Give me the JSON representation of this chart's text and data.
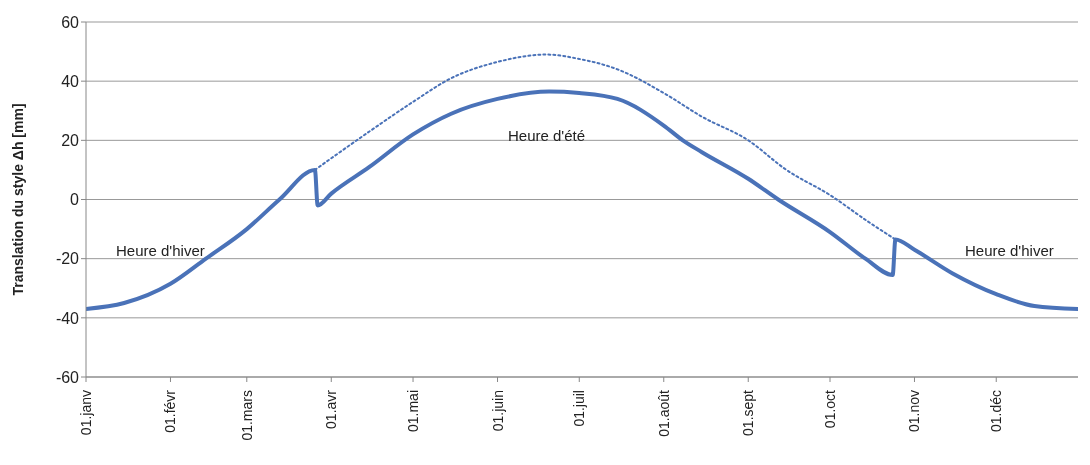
{
  "chart_data": {
    "type": "line",
    "ylabel": "Translation du style Δh [mm]",
    "xlim": [
      "--01-01",
      "--12-31"
    ],
    "xticks": [
      {
        "value": "--01-01",
        "label": "01.janv"
      },
      {
        "value": "--02-01",
        "label": "01.févr"
      },
      {
        "value": "--03-01",
        "label": "01.mars"
      },
      {
        "value": "--04-01",
        "label": "01.avr"
      },
      {
        "value": "--05-01",
        "label": "01.mai"
      },
      {
        "value": "--06-01",
        "label": "01.juin"
      },
      {
        "value": "--07-01",
        "label": "01.juil"
      },
      {
        "value": "--08-01",
        "label": "01.août"
      },
      {
        "value": "--09-01",
        "label": "01.sept"
      },
      {
        "value": "--10-01",
        "label": "01.oct"
      },
      {
        "value": "--11-01",
        "label": "01.nov"
      },
      {
        "value": "--12-01",
        "label": "01.déc"
      }
    ],
    "ylim": [
      -60,
      60
    ],
    "yticks": [
      -60,
      -40,
      -20,
      0,
      20,
      40,
      60
    ],
    "grid": "y",
    "marker": "none",
    "series": [
      {
        "color": "#4a72b8",
        "line_style": "solid",
        "x": [
          "--01-01",
          "--01-15",
          "--02-01",
          "--02-14",
          "--03-01",
          "--03-13",
          "--03-26",
          "--03-27",
          "--04-01",
          "--04-15",
          "--05-01",
          "--05-15",
          "--06-01",
          "--06-20",
          "--07-01",
          "--07-15",
          "--08-01",
          "--08-08",
          "--08-15",
          "--09-01",
          "--09-12",
          "--10-01",
          "--10-14",
          "--10-24",
          "--10-25",
          "--11-01",
          "--11-15",
          "--12-01",
          "--12-15",
          "--12-31"
        ],
        "values": [
          -37,
          -35,
          -28.5,
          -20,
          -10,
          0,
          10,
          -2,
          2,
          11,
          22,
          29,
          34,
          36.5,
          36,
          34,
          25,
          20,
          16,
          7,
          0,
          -11,
          -20,
          -25.5,
          -13.5,
          -17,
          -25,
          -32,
          -36,
          -37
        ]
      },
      {
        "color": "#4a72b8",
        "line_style": "dotted",
        "x": [
          "--03-26",
          "--04-15",
          "--05-01",
          "--05-15",
          "--06-01",
          "--06-19",
          "--07-01",
          "--07-15",
          "--08-01",
          "--08-15",
          "--09-01",
          "--09-15",
          "--10-01",
          "--10-15",
          "--10-25"
        ],
        "values": [
          10,
          23,
          33,
          41,
          46.5,
          49,
          47.5,
          44,
          36,
          28,
          20,
          10,
          1.5,
          -7.5,
          -13.5
        ]
      }
    ],
    "annotations": [
      "Heure d'hiver",
      "Heure d'été",
      "Heure d'hiver"
    ]
  }
}
